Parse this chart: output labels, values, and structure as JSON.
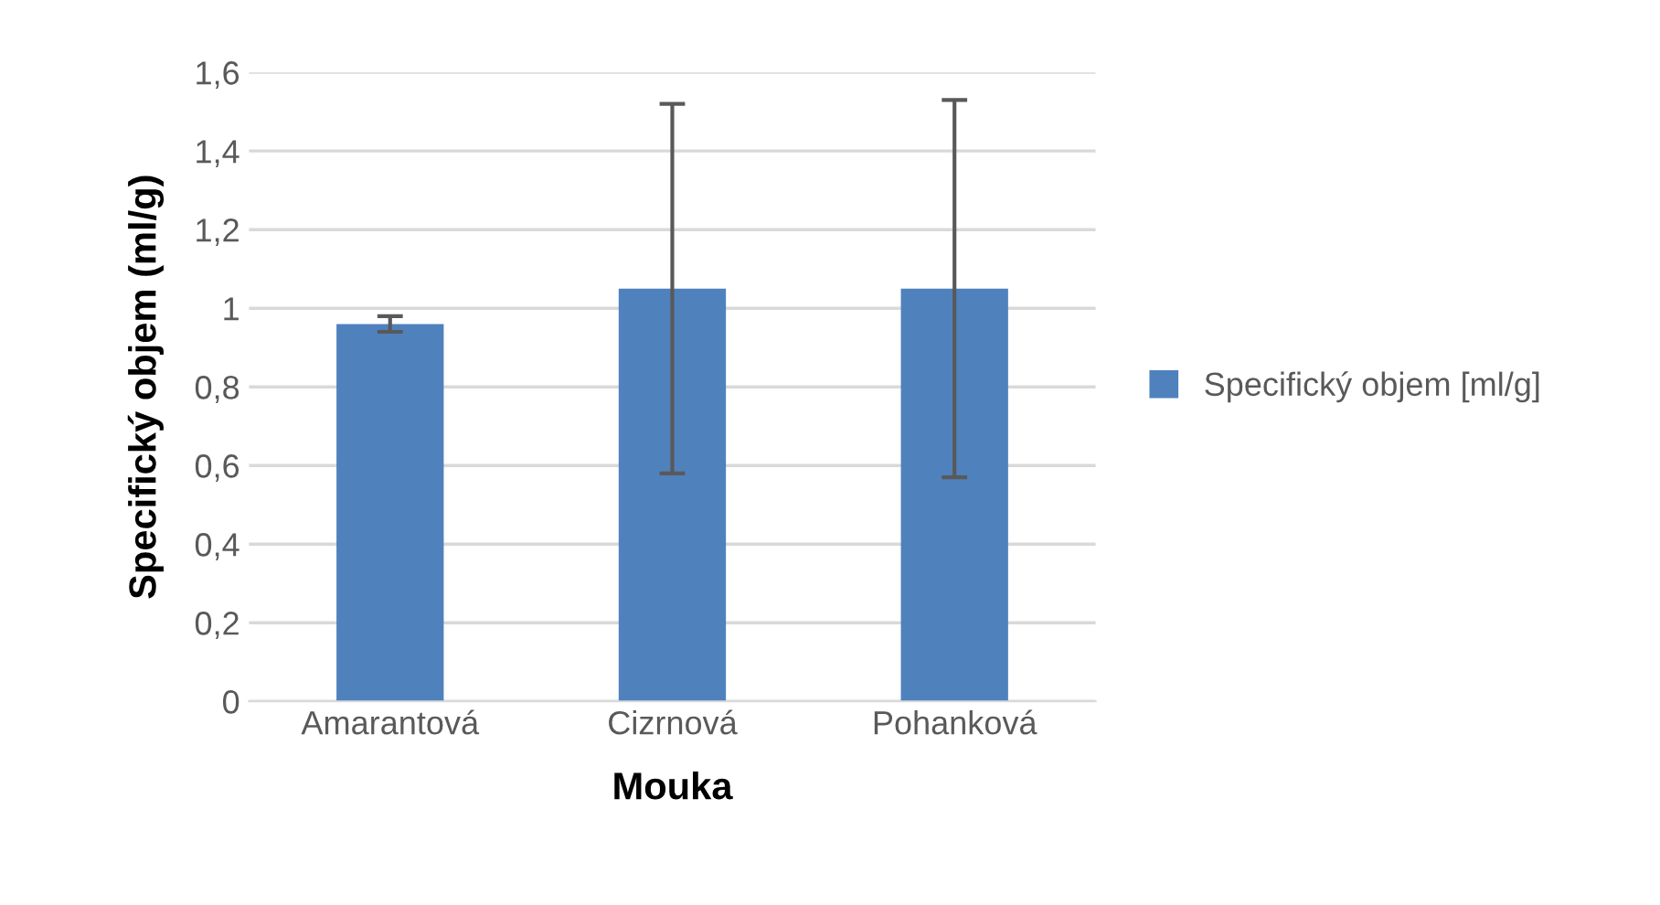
{
  "chart_data": {
    "type": "bar",
    "xlabel": "Mouka",
    "ylabel": "Specifický objem (ml/g)",
    "categories": [
      "Amarantová",
      "Cizrnová",
      "Pohanková"
    ],
    "series": [
      {
        "name": "Specifický objem [ml/g]",
        "color": "#4f81bd",
        "values": [
          0.96,
          1.05,
          1.05
        ],
        "errors": [
          0.02,
          0.47,
          0.48
        ]
      }
    ],
    "ylim": [
      0,
      1.6
    ],
    "yticks": [
      {
        "value": 0,
        "label": "0"
      },
      {
        "value": 0.2,
        "label": "0,2"
      },
      {
        "value": 0.4,
        "label": "0,4"
      },
      {
        "value": 0.6,
        "label": "0,6"
      },
      {
        "value": 0.8,
        "label": "0,8"
      },
      {
        "value": 1,
        "label": "1"
      },
      {
        "value": 1.2,
        "label": "1,2"
      },
      {
        "value": 1.4,
        "label": "1,4"
      },
      {
        "value": 1.6,
        "label": "1,6"
      }
    ],
    "grid": "y",
    "legend": "right"
  }
}
